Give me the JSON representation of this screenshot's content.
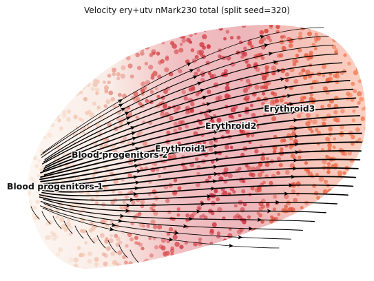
{
  "chart_data": {
    "type": "scatter",
    "title": "Velocity ery+utv nMark230 total (split seed=320)",
    "xlabel": "",
    "ylabel": "",
    "grid": false,
    "axes_visible": false,
    "overlay": "velocity streamlines",
    "color_scale": [
      "#f9e4d6",
      "#f2c4ae",
      "#d94a4a",
      "#c8283a",
      "#e65a3a",
      "#f57a50"
    ],
    "clusters": [
      {
        "name": "Blood progenitors 1",
        "color": "#f7dccb"
      },
      {
        "name": "Blood progenitors 2",
        "color": "#e8b8a6"
      },
      {
        "name": "Erythroid1",
        "color": "#cf3040"
      },
      {
        "name": "Erythroid2",
        "color": "#d63a3a"
      },
      {
        "name": "Erythroid3",
        "color": "#f0643a"
      }
    ]
  }
}
